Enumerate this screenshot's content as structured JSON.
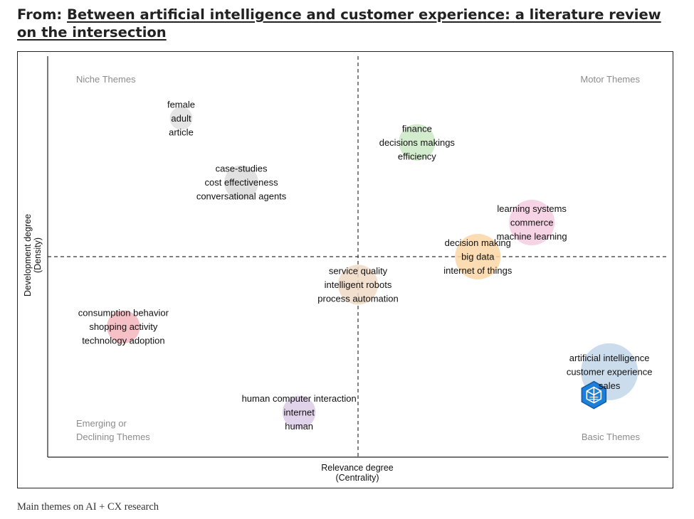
{
  "header": {
    "prefix": "From: ",
    "article_title": "Between artificial intelligence and customer experience: a literature review on the intersection"
  },
  "caption": "Main themes on AI + CX research",
  "chart_data": {
    "type": "scatter",
    "subtype": "thematic-map",
    "xlabel": [
      "Relevance degree",
      "(Centrality)"
    ],
    "ylabel": [
      "Development degree",
      "(Density)"
    ],
    "xlim": [
      0,
      1
    ],
    "ylim": [
      0,
      1
    ],
    "divider_x": 0.5,
    "divider_y": 0.5,
    "grid": false,
    "quadrants": [
      {
        "position": "top-left",
        "label": [
          "Niche Themes"
        ]
      },
      {
        "position": "top-right",
        "label": [
          "Motor Themes"
        ]
      },
      {
        "position": "bottom-left",
        "label": [
          "Emerging or",
          "Declining Themes"
        ]
      },
      {
        "position": "bottom-right",
        "label": [
          "Basic Themes"
        ]
      }
    ],
    "clusters": [
      {
        "x": 0.215,
        "y": 0.845,
        "size": 0,
        "color": "#e0e0e0",
        "labels": [
          "female",
          "adult",
          "article"
        ]
      },
      {
        "x": 0.312,
        "y": 0.685,
        "size": 0.5,
        "color": "#dcdcdc",
        "labels": [
          "case-studies",
          "cost effectiveness",
          "conversational agents"
        ]
      },
      {
        "x": 0.595,
        "y": 0.785,
        "size": 0.6,
        "color": "#cde9c6",
        "labels": [
          "finance",
          "decisions makings",
          "efficiency"
        ]
      },
      {
        "x": 0.78,
        "y": 0.585,
        "size": 1,
        "color": "#f5cbe0",
        "labels": [
          "learning systems",
          "commerce",
          "machine learning"
        ]
      },
      {
        "x": 0.693,
        "y": 0.5,
        "size": 1,
        "color": "#fcd6a6",
        "labels": [
          "decision making",
          "big data",
          "internet of things"
        ]
      },
      {
        "x": 0.5,
        "y": 0.43,
        "size": 0.75,
        "color": "#f0d9c6",
        "labels": [
          "service quality",
          "intelligent robots",
          "process automation"
        ]
      },
      {
        "x": 0.122,
        "y": 0.325,
        "size": 0.45,
        "color": "#f5b5bd",
        "labels": [
          "consumption behavior",
          "shopping activity",
          "technology adoption"
        ]
      },
      {
        "x": 0.405,
        "y": 0.112,
        "size": 0.45,
        "color": "#dccbe6",
        "labels": [
          "human computer interaction",
          "internet",
          "human"
        ]
      },
      {
        "x": 0.905,
        "y": 0.213,
        "size": 1.5,
        "color": "#c2d6ea",
        "labels": [
          "artificial intelligence",
          "customer experience",
          "sales"
        ]
      }
    ],
    "watermark": {
      "name": "cube-logo-icon",
      "x": 0.88,
      "y": 0.155
    }
  }
}
